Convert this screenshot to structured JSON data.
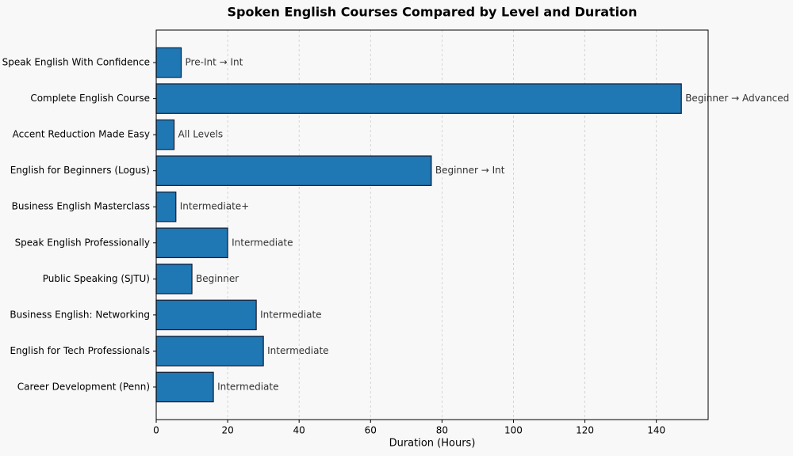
{
  "chart_data": {
    "type": "bar",
    "orientation": "horizontal",
    "title": "Spoken English Courses Compared by Level and Duration",
    "x_label": "Duration (Hours)",
    "categories": [
      "Speak English With Confidence",
      "Complete English Course",
      "Accent Reduction Made Easy",
      "English for Beginners (Logus)",
      "Business English Masterclass",
      "Speak English Professionally",
      "Public Speaking (SJTU)",
      "Business English: Networking",
      "English for Tech Professionals",
      "Career Development (Penn)"
    ],
    "values": [
      7,
      147,
      5,
      77,
      5.5,
      20,
      10,
      28,
      30,
      16
    ],
    "annotations": [
      "Pre-Int → Int",
      "Beginner → Advanced",
      "All Levels",
      "Beginner → Int",
      "Intermediate+",
      "Intermediate",
      "Beginner",
      "Intermediate",
      "Intermediate",
      "Intermediate"
    ],
    "color": "#1f77b4",
    "xlim": [
      0,
      154.5
    ],
    "xticks": [
      0,
      20,
      40,
      60,
      80,
      100,
      120,
      140
    ],
    "grid": true
  }
}
